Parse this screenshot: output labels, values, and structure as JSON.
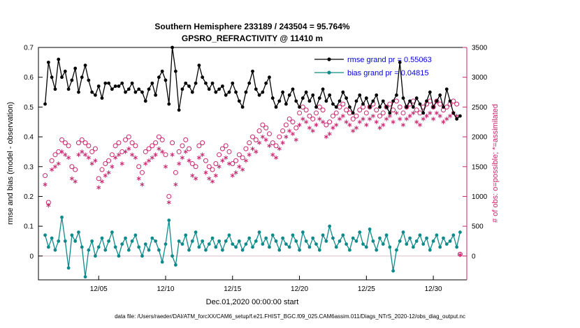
{
  "footer": "data file: /Users/raeder/DAI/ATM_forcXX/CAM6_setup/f.e21.FHIST_BGC.f09_025.CAM6assim.011/Diags_NTrS_2020-12/obs_diag_output.nc",
  "colors": {
    "rmse": "#000000",
    "bias": "#0f8a8a",
    "obs": "#c9256e",
    "legend_text": "#0000e6",
    "zero_line": "#d9c0cb",
    "axis": "#000000"
  },
  "chart_data": {
    "type": "line",
    "title": "Southern Hemisphere 233189 / 243504 = 95.764%",
    "subtitle": "GPSRO_REFRACTIVITY @ 11410 m",
    "xlabel": "Dec.01,2020 00:00:00 start",
    "ylabel_left": "rmse and bias (model - observation)",
    "ylabel_right": "# of obs: o=possible; *=assimilated",
    "xlim": [
      0.5,
      32.5
    ],
    "ylim_left": [
      -0.08,
      0.7
    ],
    "ylim_right": [
      -400,
      3500
    ],
    "x_ticks": [
      5,
      10,
      15,
      20,
      25,
      30
    ],
    "x_tick_labels": [
      "12/05",
      "12/10",
      "12/15",
      "12/20",
      "12/25",
      "12/30"
    ],
    "yticks_left": [
      0,
      0.1,
      0.2,
      0.3,
      0.4,
      0.5,
      0.6,
      0.7
    ],
    "ytick_labels_left": [
      "0",
      "0.1",
      "0.2",
      "0.3",
      "0.4",
      "0.5",
      "0.6",
      "0.7"
    ],
    "yticks_right": [
      0,
      500,
      1000,
      1500,
      2000,
      2500,
      3000,
      3500
    ],
    "ytick_labels_right": [
      "0",
      "500",
      "1000",
      "1500",
      "2000",
      "2500",
      "3000",
      "3500"
    ],
    "grid": false,
    "legend_position": "top-right-inside",
    "legend": [
      {
        "label": "rmse grand pr = 0.55063"
      },
      {
        "label": "bias grand pr = 0.04815"
      }
    ],
    "x_start": 1.0,
    "x_step": 0.25,
    "series": [
      {
        "name": "possible",
        "axis": "right",
        "marker": "circle",
        "line": false,
        "color": "#c9256e",
        "values": [
          1350,
          900,
          1600,
          1700,
          1750,
          1950,
          1900,
          1850,
          1500,
          1450,
          1900,
          1950,
          1900,
          1850,
          1750,
          1800,
          1300,
          1450,
          1550,
          1600,
          1700,
          1850,
          1900,
          1750,
          1950,
          2000,
          1900,
          1850,
          1500,
          1400,
          1750,
          1800,
          1850,
          1900,
          2000,
          1950,
          1700,
          1000,
          1900,
          1400,
          1750,
          1850,
          1950,
          1800,
          1550,
          1500,
          1850,
          1900,
          1600,
          1500,
          1450,
          1550,
          1700,
          1800,
          1850,
          1750,
          1550,
          1600,
          1700,
          1650,
          1800,
          1900,
          2000,
          1950,
          2100,
          2200,
          2150,
          2050,
          1900,
          1850,
          2000,
          2100,
          2200,
          2300,
          2250,
          2150,
          2400,
          2500,
          2450,
          2350,
          2300,
          2400,
          2500,
          2450,
          2200,
          2250,
          2350,
          2400,
          2500,
          2550,
          2450,
          2400,
          2300,
          2350,
          2450,
          2500,
          2400,
          2500,
          2550,
          2450,
          2350,
          2400,
          2500,
          2550,
          2450,
          2600,
          2500,
          2400,
          2500,
          2550,
          2600,
          2450,
          2400,
          2500,
          2550,
          2600,
          2500,
          2600,
          2550,
          2450,
          2500,
          2550,
          2600,
          2550,
          30
        ]
      },
      {
        "name": "assimilated",
        "axis": "right",
        "marker": "asterisk",
        "line": false,
        "color": "#c9256e",
        "values": [
          1200,
          850,
          1450,
          1500,
          1550,
          1750,
          1700,
          1650,
          1300,
          1250,
          1700,
          1750,
          1700,
          1650,
          1550,
          1600,
          1150,
          1250,
          1350,
          1400,
          1500,
          1650,
          1700,
          1550,
          1750,
          1800,
          1700,
          1650,
          1300,
          1200,
          1550,
          1600,
          1650,
          1700,
          1800,
          1750,
          1500,
          900,
          1700,
          1200,
          1550,
          1650,
          1750,
          1600,
          1350,
          1300,
          1650,
          1700,
          1400,
          1300,
          1250,
          1350,
          1500,
          1600,
          1650,
          1550,
          1350,
          1400,
          1500,
          1450,
          1600,
          1700,
          1800,
          1750,
          1900,
          2000,
          1950,
          1850,
          1700,
          1650,
          1800,
          1900,
          2000,
          2100,
          2050,
          1950,
          2200,
          2300,
          2250,
          2150,
          2100,
          2200,
          2300,
          2250,
          2000,
          2050,
          2150,
          2200,
          2300,
          2350,
          2250,
          2200,
          2100,
          2150,
          2250,
          2300,
          2200,
          2300,
          2350,
          2250,
          2150,
          2200,
          2300,
          2350,
          2250,
          2400,
          2300,
          2200,
          2300,
          2350,
          2400,
          2250,
          2200,
          2300,
          2350,
          2400,
          2300,
          2400,
          2350,
          2250,
          2300,
          2350,
          2400,
          2350,
          20
        ]
      },
      {
        "name": "rmse",
        "axis": "left",
        "marker": "dot",
        "line": true,
        "color": "#000000",
        "values": [
          0.51,
          0.65,
          0.6,
          0.56,
          0.66,
          0.6,
          0.62,
          0.56,
          0.59,
          0.63,
          0.55,
          0.6,
          0.64,
          0.59,
          0.55,
          0.54,
          0.57,
          0.53,
          0.58,
          0.58,
          0.56,
          0.57,
          0.57,
          0.58,
          0.55,
          0.56,
          0.58,
          0.55,
          0.56,
          0.55,
          0.52,
          0.56,
          0.58,
          0.54,
          0.6,
          0.62,
          0.59,
          0.51,
          0.7,
          0.62,
          0.49,
          0.56,
          0.58,
          0.57,
          0.55,
          0.58,
          0.64,
          0.6,
          0.58,
          0.56,
          0.58,
          0.55,
          0.56,
          0.57,
          0.54,
          0.55,
          0.58,
          0.55,
          0.52,
          0.5,
          0.55,
          0.58,
          0.62,
          0.56,
          0.54,
          0.55,
          0.58,
          0.6,
          0.53,
          0.5,
          0.52,
          0.55,
          0.51,
          0.54,
          0.56,
          0.52,
          0.5,
          0.53,
          0.55,
          0.52,
          0.54,
          0.5,
          0.53,
          0.56,
          0.52,
          0.54,
          0.51,
          0.5,
          0.52,
          0.55,
          0.53,
          0.5,
          0.48,
          0.52,
          0.54,
          0.51,
          0.53,
          0.5,
          0.52,
          0.54,
          0.5,
          0.52,
          0.5,
          0.48,
          0.52,
          0.54,
          0.65,
          0.53,
          0.5,
          0.52,
          0.5,
          0.53,
          0.51,
          0.48,
          0.52,
          0.55,
          0.5,
          0.52,
          0.54,
          0.5,
          0.56,
          0.52,
          0.48,
          0.46,
          0.47
        ]
      },
      {
        "name": "bias",
        "axis": "left",
        "marker": "dot",
        "line": true,
        "color": "#0f8a8a",
        "values": [
          0.07,
          0.03,
          0.06,
          0.02,
          0.05,
          0.13,
          0.05,
          -0.04,
          0.07,
          0.05,
          0.08,
          0.03,
          -0.07,
          0.02,
          0.05,
          0.0,
          0.03,
          0.06,
          0.02,
          0.05,
          0.08,
          0.03,
          0.0,
          0.04,
          0.06,
          0.02,
          0.05,
          0.07,
          0.03,
          0.0,
          0.04,
          0.02,
          0.06,
          0.05,
          0.02,
          -0.02,
          0.04,
          0.12,
          0.0,
          -0.03,
          0.05,
          0.04,
          0.07,
          0.02,
          0.05,
          0.08,
          0.03,
          0.05,
          0.02,
          0.04,
          0.06,
          0.03,
          0.05,
          0.02,
          0.05,
          0.07,
          0.04,
          0.03,
          0.05,
          0.02,
          0.04,
          0.06,
          0.03,
          0.05,
          0.08,
          0.04,
          0.06,
          0.03,
          0.07,
          0.05,
          0.02,
          0.06,
          0.04,
          0.03,
          0.07,
          0.05,
          0.02,
          0.08,
          0.05,
          0.03,
          0.06,
          0.04,
          0.02,
          0.07,
          0.05,
          0.1,
          0.06,
          0.03,
          0.05,
          0.07,
          0.04,
          0.02,
          0.06,
          0.05,
          0.08,
          0.04,
          0.03,
          0.09,
          0.05,
          0.02,
          0.06,
          0.04,
          0.07,
          0.03,
          -0.05,
          0.02,
          0.05,
          0.08,
          0.04,
          0.06,
          0.03,
          0.05,
          0.07,
          0.04,
          0.06,
          0.02,
          0.05,
          0.07,
          0.03,
          0.06,
          0.04,
          0.05,
          0.07,
          0.03,
          0.08
        ]
      }
    ]
  }
}
